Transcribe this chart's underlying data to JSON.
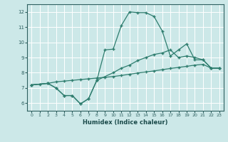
{
  "xlabel": "Humidex (Indice chaleur)",
  "bg_color": "#cce8e8",
  "grid_color": "#ffffff",
  "line_color": "#2e7d6e",
  "xlim": [
    -0.5,
    23.5
  ],
  "ylim": [
    5.5,
    12.5
  ],
  "xticks": [
    0,
    1,
    2,
    3,
    4,
    5,
    6,
    7,
    8,
    9,
    10,
    11,
    12,
    13,
    14,
    15,
    16,
    17,
    18,
    19,
    20,
    21,
    22,
    23
  ],
  "yticks": [
    6,
    7,
    8,
    9,
    10,
    11,
    12
  ],
  "line1_x": [
    0,
    1,
    2,
    3,
    4,
    5,
    6,
    7,
    8,
    9,
    10,
    11,
    12,
    13,
    14,
    15,
    16,
    17,
    18,
    19,
    20,
    21,
    22,
    23
  ],
  "line1_y": [
    7.2,
    7.25,
    7.3,
    7.4,
    7.45,
    7.5,
    7.55,
    7.6,
    7.65,
    7.7,
    7.75,
    7.82,
    7.9,
    7.98,
    8.05,
    8.12,
    8.2,
    8.28,
    8.35,
    8.42,
    8.5,
    8.55,
    8.3,
    8.3
  ],
  "line2_x": [
    0,
    2,
    3,
    4,
    5,
    6,
    7,
    8,
    10,
    11,
    12,
    13,
    14,
    15,
    16,
    17,
    18,
    19,
    20,
    21,
    22,
    23
  ],
  "line2_y": [
    7.2,
    7.3,
    7.0,
    6.5,
    6.5,
    5.95,
    6.3,
    7.5,
    8.0,
    8.3,
    8.5,
    8.8,
    9.0,
    9.2,
    9.3,
    9.5,
    9.0,
    9.1,
    9.0,
    8.85,
    8.3,
    8.3
  ],
  "line3_x": [
    0,
    2,
    3,
    4,
    5,
    6,
    7,
    8,
    9,
    10,
    11,
    12,
    13,
    14,
    15,
    16,
    17,
    18,
    19,
    20,
    21,
    22,
    23
  ],
  "line3_y": [
    7.2,
    7.3,
    7.0,
    6.5,
    6.5,
    5.95,
    6.3,
    7.5,
    9.5,
    9.55,
    11.1,
    12.0,
    11.95,
    11.95,
    11.7,
    10.75,
    9.1,
    9.5,
    9.9,
    8.85,
    8.85,
    8.3,
    8.3
  ]
}
